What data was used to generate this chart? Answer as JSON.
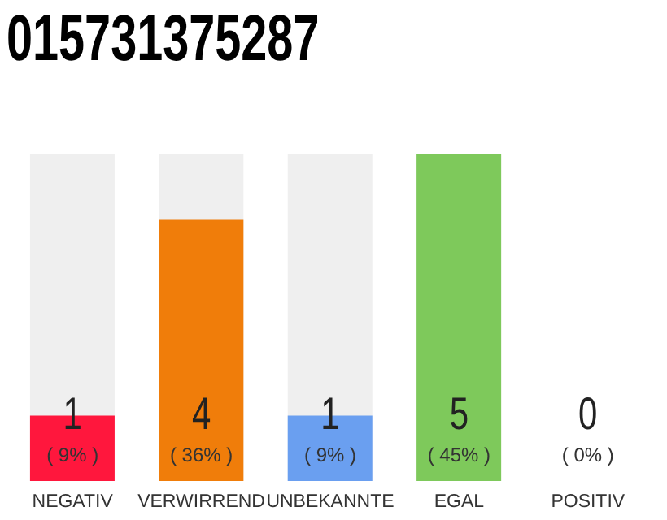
{
  "chart_data": {
    "type": "bar",
    "title": "015731375287",
    "categories": [
      "NEGATIV",
      "VERWIRREND",
      "UNBEKANNTE",
      "EGAL",
      "POSITIV"
    ],
    "values": [
      9,
      36,
      9,
      45,
      0
    ],
    "colors": [
      "#ff173d",
      "#f07d0a",
      "#6a9ff0",
      "#7ec95b",
      "#1aa64a"
    ],
    "value_labels": [
      "( 9% )",
      "( 36% )",
      "( 9% )",
      "( 45% )",
      "( 0% )"
    ],
    "annotations": [
      "1",
      "4",
      "1",
      "5",
      "0"
    ]
  }
}
